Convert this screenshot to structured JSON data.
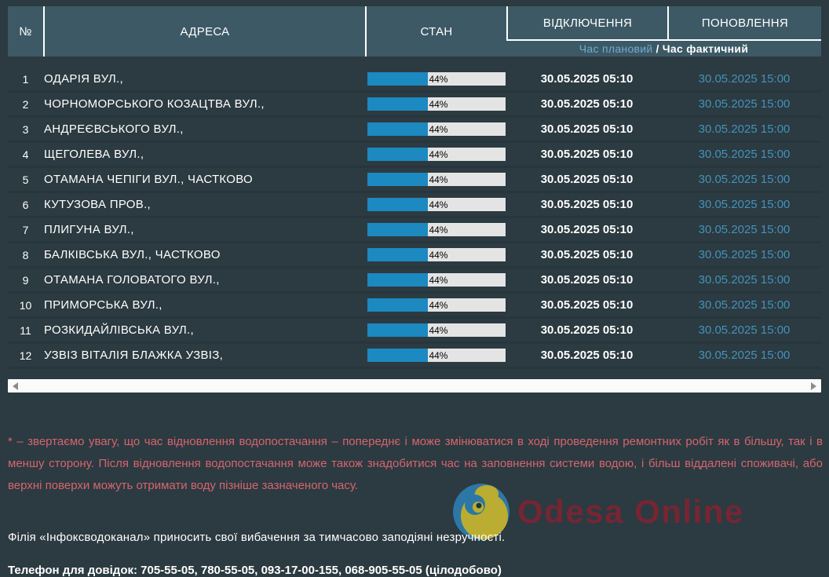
{
  "table": {
    "header": {
      "col_num": "№",
      "col_address": "АДРЕСА",
      "col_state": "СТАН",
      "col_off": "ВІДКЛЮЧЕННЯ",
      "col_restore": "ПОНОВЛЕННЯ",
      "sub_planned": "Час плановий",
      "sub_separator": "/",
      "sub_actual": "Час фактичний"
    },
    "rows": [
      {
        "num": "1",
        "address": "ОДАРІЯ ВУЛ.,",
        "percent": 44,
        "percent_label": "44%",
        "off_time": "30.05.2025 05:10",
        "restore_time": "30.05.2025 15:00"
      },
      {
        "num": "2",
        "address": "ЧОРНОМОРСЬКОГО КОЗАЦТВА ВУЛ.,",
        "percent": 44,
        "percent_label": "44%",
        "off_time": "30.05.2025 05:10",
        "restore_time": "30.05.2025 15:00"
      },
      {
        "num": "3",
        "address": "АНДРЕЄВСЬКОГО ВУЛ.,",
        "percent": 44,
        "percent_label": "44%",
        "off_time": "30.05.2025 05:10",
        "restore_time": "30.05.2025 15:00"
      },
      {
        "num": "4",
        "address": "ЩЕГОЛЕВА ВУЛ.,",
        "percent": 44,
        "percent_label": "44%",
        "off_time": "30.05.2025 05:10",
        "restore_time": "30.05.2025 15:00"
      },
      {
        "num": "5",
        "address": "ОТАМАНА ЧЕПІГИ ВУЛ., ЧАСТКОВО",
        "percent": 44,
        "percent_label": "44%",
        "off_time": "30.05.2025 05:10",
        "restore_time": "30.05.2025 15:00"
      },
      {
        "num": "6",
        "address": "КУТУЗОВА ПРОВ.,",
        "percent": 44,
        "percent_label": "44%",
        "off_time": "30.05.2025 05:10",
        "restore_time": "30.05.2025 15:00"
      },
      {
        "num": "7",
        "address": "ПЛИГУНА ВУЛ.,",
        "percent": 44,
        "percent_label": "44%",
        "off_time": "30.05.2025 05:10",
        "restore_time": "30.05.2025 15:00"
      },
      {
        "num": "8",
        "address": "БАЛКІВСЬКА ВУЛ., ЧАСТКОВО",
        "percent": 44,
        "percent_label": "44%",
        "off_time": "30.05.2025 05:10",
        "restore_time": "30.05.2025 15:00"
      },
      {
        "num": "9",
        "address": "ОТАМАНА ГОЛОВАТОГО ВУЛ.,",
        "percent": 44,
        "percent_label": "44%",
        "off_time": "30.05.2025 05:10",
        "restore_time": "30.05.2025 15:00"
      },
      {
        "num": "10",
        "address": "ПРИМОРСЬКА ВУЛ.,",
        "percent": 44,
        "percent_label": "44%",
        "off_time": "30.05.2025 05:10",
        "restore_time": "30.05.2025 15:00"
      },
      {
        "num": "11",
        "address": "РОЗКИДАЙЛІВСЬКА ВУЛ.,",
        "percent": 44,
        "percent_label": "44%",
        "off_time": "30.05.2025 05:10",
        "restore_time": "30.05.2025 15:00"
      },
      {
        "num": "12",
        "address": "УЗВІЗ ВІТАЛІЯ БЛАЖКА УЗВІЗ,",
        "percent": 44,
        "percent_label": "44%",
        "off_time": "30.05.2025 05:10",
        "restore_time": "30.05.2025 15:00"
      }
    ]
  },
  "notes": {
    "warning": "* – звертаємо увагу, що час відновлення водопостачання – попереднє і може змінюватися в ході проведення ремонтних робіт як в більшу, так і в меншу сторону. Після відновлення водопостачання може також знадобитися час на заповнення системи водою, і більш віддалені споживачі, або верхні поверхи можуть отримати воду пізніше зазначеного часу.",
    "apology": "Філія «Інфоксводоканал» приносить свої вибачення за тимчасово заподіяні незручності.",
    "phones": "Телефон для довідок: 705-55-05, 780-55-05, 093-17-00-155, 068-905-55-05 (цілодобово)"
  },
  "watermark": {
    "brand": "Odesa Online"
  },
  "colors": {
    "page_bg": "#2c3a41",
    "header_bg": "#3d5966",
    "accent_blue": "#1c89c0",
    "bar_track": "#e4e4e4",
    "planned_blue": "#6faccb",
    "restore_blue": "#4293bb",
    "warning_red": "#d5656e",
    "watermark_red": "#7b2433",
    "logo_blue": "#2e7bad",
    "logo_yellow": "#c3b431"
  }
}
